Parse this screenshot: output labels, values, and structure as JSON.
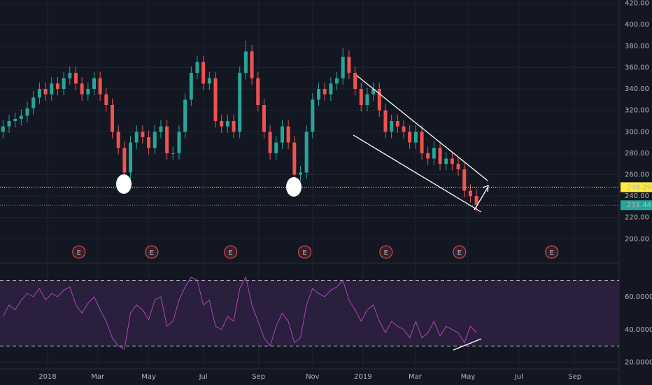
{
  "chart_data": [
    {
      "type": "candlestick",
      "up_color": "#26a69a",
      "down_color": "#ef5350",
      "grid": true,
      "xlim": [
        -0.5,
        101.5
      ],
      "xticks": [
        {
          "value": 7.33,
          "label": "2018"
        },
        {
          "value": 15.6,
          "label": "Mar"
        },
        {
          "value": 24.0,
          "label": "May"
        },
        {
          "value": 33.0,
          "label": "Jul"
        },
        {
          "value": 42.1,
          "label": "Sep"
        },
        {
          "value": 51.0,
          "label": "Nov"
        },
        {
          "value": 59.3,
          "label": "2019"
        },
        {
          "value": 67.9,
          "label": "Mar"
        },
        {
          "value": 76.6,
          "label": "May"
        },
        {
          "value": 85.0,
          "label": "Jul"
        },
        {
          "value": 94.2,
          "label": "Sep"
        }
      ],
      "ylim": [
        178,
        423
      ],
      "yticks": [
        {
          "value": 200,
          "label": "200.00"
        },
        {
          "value": 220,
          "label": "220.00"
        },
        {
          "value": 240,
          "label": "240.00"
        },
        {
          "value": 260,
          "label": "260.00"
        },
        {
          "value": 280,
          "label": "280.00"
        },
        {
          "value": 300,
          "label": "300.00"
        },
        {
          "value": 320,
          "label": "320.00"
        },
        {
          "value": 340,
          "label": "340.00"
        },
        {
          "value": 360,
          "label": "360.00"
        },
        {
          "value": 380,
          "label": "380.00"
        },
        {
          "value": 400,
          "label": "400.00"
        },
        {
          "value": 420,
          "label": "420.00"
        }
      ],
      "open": [
        300,
        305,
        310,
        312,
        315,
        322,
        332,
        340,
        335,
        345,
        340,
        350,
        355,
        345,
        335,
        340,
        350,
        335,
        325,
        300,
        285,
        262,
        290,
        300,
        295,
        285,
        300,
        305,
        280,
        280,
        300,
        330,
        355,
        365,
        345,
        350,
        310,
        305,
        310,
        300,
        355,
        375,
        350,
        325,
        300,
        280,
        290,
        305,
        290,
        260,
        262,
        300,
        330,
        340,
        335,
        345,
        350,
        370,
        355,
        340,
        325,
        335,
        340,
        320,
        300,
        310,
        305,
        300,
        290,
        300,
        280,
        275,
        285,
        270,
        275,
        270,
        265,
        245,
        240
      ],
      "high": [
        311,
        316,
        318,
        321,
        328,
        338,
        346,
        346,
        351,
        351,
        356,
        361,
        361,
        351,
        346,
        356,
        356,
        341,
        331,
        306,
        291,
        296,
        306,
        306,
        301,
        306,
        311,
        311,
        286,
        306,
        336,
        361,
        371,
        371,
        356,
        356,
        316,
        316,
        316,
        361,
        385,
        381,
        356,
        331,
        306,
        296,
        311,
        311,
        296,
        268,
        306,
        336,
        346,
        346,
        351,
        356,
        378,
        376,
        361,
        346,
        341,
        346,
        346,
        326,
        316,
        316,
        311,
        306,
        306,
        306,
        286,
        291,
        291,
        281,
        281,
        276,
        271,
        251,
        246
      ],
      "low": [
        294,
        299,
        304,
        306,
        309,
        316,
        326,
        329,
        329,
        334,
        334,
        344,
        339,
        329,
        329,
        334,
        329,
        319,
        294,
        279,
        252,
        256,
        284,
        289,
        279,
        279,
        294,
        274,
        274,
        274,
        294,
        324,
        349,
        339,
        339,
        304,
        299,
        299,
        294,
        294,
        349,
        344,
        319,
        294,
        274,
        274,
        284,
        284,
        254,
        254,
        256,
        294,
        324,
        329,
        329,
        339,
        344,
        349,
        334,
        319,
        319,
        329,
        314,
        294,
        294,
        299,
        294,
        284,
        284,
        274,
        269,
        269,
        264,
        264,
        264,
        259,
        239,
        234,
        226
      ],
      "close": [
        305,
        310,
        312,
        315,
        322,
        332,
        340,
        335,
        345,
        340,
        350,
        355,
        345,
        335,
        340,
        350,
        335,
        325,
        300,
        285,
        262,
        290,
        300,
        295,
        285,
        300,
        305,
        280,
        280,
        300,
        330,
        355,
        365,
        345,
        350,
        310,
        305,
        310,
        300,
        355,
        375,
        350,
        325,
        300,
        280,
        290,
        305,
        290,
        260,
        262,
        300,
        330,
        340,
        335,
        345,
        350,
        370,
        355,
        340,
        325,
        335,
        340,
        320,
        300,
        310,
        305,
        300,
        290,
        300,
        280,
        275,
        285,
        270,
        275,
        270,
        265,
        245,
        240,
        232
      ],
      "price_lines": [
        {
          "value": 248.29,
          "color": "#ffeb3b"
        },
        {
          "value": 231.44,
          "color": "#26a69a"
        }
      ],
      "events": {
        "label": "E",
        "x": [
          12.5,
          24.5,
          37.5,
          49.7,
          63.1,
          75.2,
          90.4
        ]
      }
    },
    {
      "type": "line",
      "color": "#ab47bc",
      "band_color": "#2a1f3d",
      "band": [
        30,
        70
      ],
      "xlim": [
        -0.5,
        101.5
      ],
      "ylim": [
        16,
        80
      ],
      "yticks": [
        {
          "value": 20,
          "label": "20.0000"
        },
        {
          "value": 40,
          "label": "40.0000"
        },
        {
          "value": 60,
          "label": "60.0000"
        }
      ],
      "values": [
        48,
        55,
        52,
        58,
        62,
        60,
        65,
        58,
        62,
        60,
        64,
        66,
        55,
        50,
        56,
        60,
        52,
        45,
        35,
        30,
        28,
        50,
        55,
        52,
        46,
        58,
        60,
        42,
        45,
        58,
        66,
        72,
        70,
        55,
        58,
        42,
        40,
        48,
        45,
        65,
        72,
        55,
        45,
        35,
        30,
        42,
        50,
        45,
        32,
        35,
        55,
        65,
        62,
        60,
        64,
        66,
        70,
        58,
        52,
        45,
        52,
        55,
        45,
        38,
        45,
        42,
        40,
        35,
        45,
        35,
        38,
        45,
        36,
        42,
        40,
        38,
        32,
        42,
        38
      ]
    }
  ]
}
